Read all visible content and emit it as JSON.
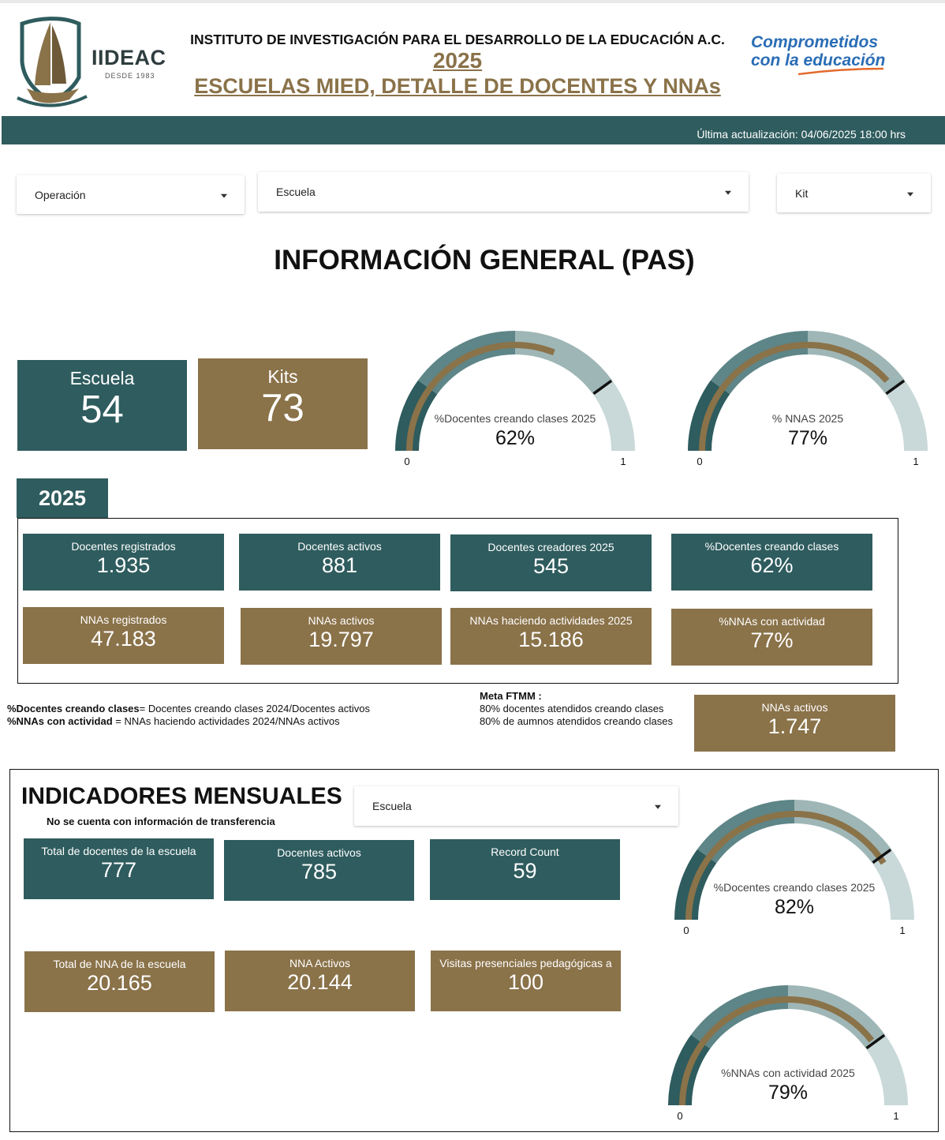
{
  "header": {
    "logo_text": "IIDEAC",
    "logo_sub": "DESDE 1983",
    "institute": "INSTITUTO DE INVESTIGACIÓN PARA EL DESARROLLO DE LA EDUCACIÓN A.C.",
    "year": "2025 ",
    "subtitle": "ESCUELAS MIED, DETALLE DE DOCENTES Y NNAs",
    "slogan_line1": "Comprometidos",
    "slogan_line2": "con la educación",
    "last_update": "Última actualización: 04/06/2025 18:00 hrs"
  },
  "filters": {
    "operacion": "Operación",
    "escuela": "Escuela",
    "kit": "Kit"
  },
  "general": {
    "title": "INFORMACIÓN GENERAL (PAS)",
    "escuela_label": "Escuela",
    "escuela_value": "54",
    "kits_label": "Kits",
    "kits_value": "73"
  },
  "gauges": [
    {
      "label": "%Docentes creando clases 2025",
      "value_text": "62%",
      "value": 0.62,
      "target": 0.8,
      "min": "0",
      "max": "1"
    },
    {
      "label": "% NNAS 2025",
      "value_text": "77%",
      "value": 0.77,
      "target": 0.8,
      "min": "0",
      "max": "1"
    },
    {
      "label": "%Docentes creando clases 2025",
      "value_text": "82%",
      "value": 0.82,
      "target": 0.8,
      "min": "0",
      "max": "1"
    },
    {
      "label": "%NNAs con actividad 2025",
      "value_text": "79%",
      "value": 0.79,
      "target": 0.8,
      "min": "0",
      "max": "1"
    }
  ],
  "year_section": {
    "tab": "2025",
    "cards_top": [
      {
        "label": "Docentes registrados",
        "value": "1.935"
      },
      {
        "label": "Docentes activos",
        "value": "881"
      },
      {
        "label": "Docentes creadores 2025",
        "value": "545"
      },
      {
        "label": "%Docentes creando clases",
        "value": "62%"
      }
    ],
    "cards_bottom": [
      {
        "label": "NNAs registrados",
        "value": "47.183"
      },
      {
        "label": "NNAs activos",
        "value": "19.797"
      },
      {
        "label": "NNAs haciendo actividades 2025",
        "value": "15.186"
      },
      {
        "label": "%NNAs con actividad",
        "value": "77%"
      }
    ]
  },
  "notes": {
    "def1_bold": "%Docentes creando clases",
    "def1_rest": "=  Docentes creando clases 2024/Docentes activos",
    "def2_bold": "%NNAs con actividad",
    "def2_rest": " = NNAs haciendo actividades 2024/NNAs activos",
    "meta_title": "Meta FTMM :",
    "meta_1": "80% docentes atendidos creando clases",
    "meta_2": "80% de aumnos atendidos creando clases",
    "extra_card_label": "NNAs activos",
    "extra_card_value": "1.747"
  },
  "monthly": {
    "title": "INDICADORES MENSUALES",
    "subtitle": "No se cuenta con información de transferencia",
    "filter": "Escuela",
    "cards_top": [
      {
        "label": "Total de docentes de la escuela",
        "value": "777"
      },
      {
        "label": "Docentes activos",
        "value": "785"
      },
      {
        "label": "Record Count",
        "value": "59"
      }
    ],
    "cards_bottom": [
      {
        "label": "Total de NNA de la escuela",
        "value": "20.165"
      },
      {
        "label": "NNA Activos",
        "value": "20.144"
      },
      {
        "label": "Visitas presenciales pedagógicas a",
        "value": "100"
      }
    ]
  },
  "colors": {
    "teal": "#2f5c5e",
    "brown": "#8a7249",
    "band_mid": "#5e8587",
    "band_light": "#9fb6b6",
    "band_lighter": "#c9d8d8",
    "slogan_blue": "#2a6db5"
  }
}
